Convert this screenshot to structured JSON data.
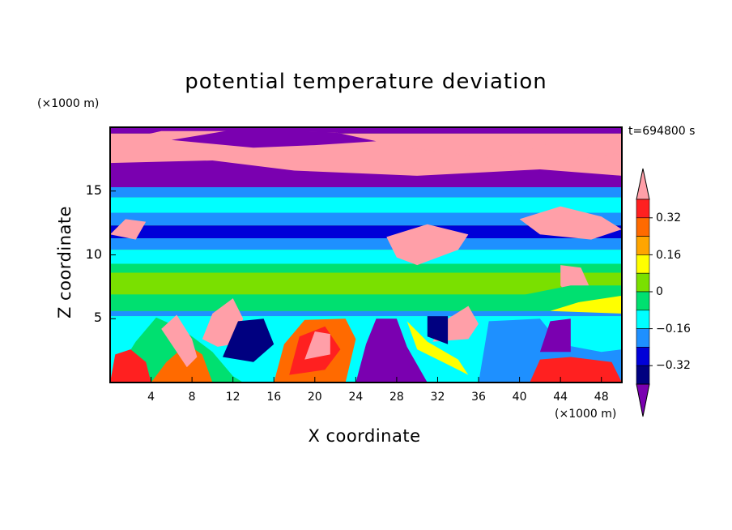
{
  "chart_data": {
    "type": "heatmap",
    "title": "potential temperature deviation",
    "xlabel": "X coordinate",
    "ylabel": "Z coordinate",
    "x_unit": "(×1000 m)",
    "y_unit": "(×1000 m)",
    "time_label": "t=694800 s",
    "xlim": [
      0,
      50
    ],
    "ylim": [
      0,
      20
    ],
    "x_ticks": [
      "4",
      "8",
      "12",
      "16",
      "20",
      "24",
      "28",
      "32",
      "36",
      "40",
      "44",
      "48"
    ],
    "y_ticks": [
      "5",
      "10",
      "15"
    ],
    "colorbar": {
      "levels": [
        -0.4,
        -0.32,
        -0.24,
        -0.16,
        -0.08,
        0,
        0.08,
        0.16,
        0.24,
        0.32,
        0.4
      ],
      "tick_labels": [
        "0.32",
        "0.16",
        "0",
        "−0.16",
        "−0.32"
      ],
      "colors": [
        "#ff9fa8",
        "#ff2020",
        "#ff6a00",
        "#ffa500",
        "#ffff00",
        "#7ae000",
        "#00e070",
        "#00ffff",
        "#1e90ff",
        "#0000d8",
        "#000080",
        "#7a00b0"
      ]
    }
  }
}
